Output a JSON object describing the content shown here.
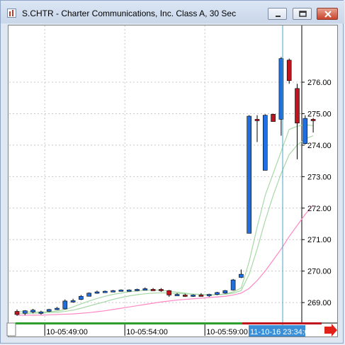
{
  "window": {
    "title": "S.CHTR - Charter Communications, Inc. Class A, 30 Sec",
    "minimize_icon": "minimize-icon",
    "maximize_icon": "maximize-icon",
    "close_icon": "close-icon"
  },
  "chart_data": {
    "type": "candlestick",
    "y_ticks": [
      "276.00",
      "275.00",
      "274.00",
      "273.00",
      "272.00",
      "271.00",
      "270.00",
      "269.00"
    ],
    "y_tick_values": [
      276,
      275,
      274,
      273,
      272,
      271,
      270,
      269
    ],
    "ylim": [
      268.35,
      277.8
    ],
    "x_ticks": [
      "10-05:49:00",
      "10-05:54:00",
      "10-05:59:00"
    ],
    "cursor_time_label": "11-10-16 23:34:00",
    "cursor_price_label": "",
    "colors": {
      "up": "#1f6fe0",
      "down": "#c0141e",
      "ma_fast": "#a8d8a8",
      "ma_slow": "#ff88c4",
      "cursor": "#4aa3c8",
      "scroll_green": "#2e9e2e",
      "scroll_red": "#c0141e"
    },
    "candles": [
      {
        "o": 268.72,
        "h": 268.78,
        "l": 268.58,
        "c": 268.62
      },
      {
        "o": 268.66,
        "h": 268.76,
        "l": 268.6,
        "c": 268.74
      },
      {
        "o": 268.7,
        "h": 268.8,
        "l": 268.66,
        "c": 268.76
      },
      {
        "o": 268.7,
        "h": 268.74,
        "l": 268.62,
        "c": 268.7
      },
      {
        "o": 268.72,
        "h": 268.8,
        "l": 268.7,
        "c": 268.78
      },
      {
        "o": 268.78,
        "h": 268.86,
        "l": 268.76,
        "c": 268.82
      },
      {
        "o": 268.8,
        "h": 269.1,
        "l": 268.78,
        "c": 269.05
      },
      {
        "o": 269.02,
        "h": 269.12,
        "l": 269.0,
        "c": 269.06
      },
      {
        "o": 269.1,
        "h": 269.24,
        "l": 269.08,
        "c": 269.2
      },
      {
        "o": 269.2,
        "h": 269.32,
        "l": 269.2,
        "c": 269.3
      },
      {
        "o": 269.3,
        "h": 269.38,
        "l": 269.28,
        "c": 269.34
      },
      {
        "o": 269.34,
        "h": 269.38,
        "l": 269.32,
        "c": 269.36
      },
      {
        "o": 269.36,
        "h": 269.4,
        "l": 269.34,
        "c": 269.38
      },
      {
        "o": 269.38,
        "h": 269.42,
        "l": 269.36,
        "c": 269.4
      },
      {
        "o": 269.4,
        "h": 269.42,
        "l": 269.38,
        "c": 269.4
      },
      {
        "o": 269.4,
        "h": 269.44,
        "l": 269.36,
        "c": 269.42
      },
      {
        "o": 269.44,
        "h": 269.48,
        "l": 269.4,
        "c": 269.44
      },
      {
        "o": 269.42,
        "h": 269.46,
        "l": 269.38,
        "c": 269.4
      },
      {
        "o": 269.42,
        "h": 269.46,
        "l": 269.34,
        "c": 269.38
      },
      {
        "o": 269.38,
        "h": 269.4,
        "l": 269.18,
        "c": 269.24
      },
      {
        "o": 269.26,
        "h": 269.3,
        "l": 269.22,
        "c": 269.26
      },
      {
        "o": 269.24,
        "h": 269.28,
        "l": 269.18,
        "c": 269.22
      },
      {
        "o": 269.2,
        "h": 269.26,
        "l": 269.18,
        "c": 269.24
      },
      {
        "o": 269.24,
        "h": 269.3,
        "l": 269.2,
        "c": 269.22
      },
      {
        "o": 269.22,
        "h": 269.28,
        "l": 269.18,
        "c": 269.26
      },
      {
        "o": 269.26,
        "h": 269.34,
        "l": 269.24,
        "c": 269.32
      },
      {
        "o": 269.3,
        "h": 269.4,
        "l": 269.28,
        "c": 269.38
      },
      {
        "o": 269.4,
        "h": 269.75,
        "l": 269.38,
        "c": 269.72
      },
      {
        "o": 269.8,
        "h": 270.05,
        "l": 269.78,
        "c": 269.9
      },
      {
        "o": 271.2,
        "h": 274.95,
        "l": 271.2,
        "c": 274.92
      },
      {
        "o": 274.82,
        "h": 274.95,
        "l": 274.1,
        "c": 274.78
      },
      {
        "o": 273.2,
        "h": 274.98,
        "l": 273.2,
        "c": 274.95
      },
      {
        "o": 274.98,
        "h": 275.0,
        "l": 274.75,
        "c": 274.75
      },
      {
        "o": 274.82,
        "h": 276.8,
        "l": 274.3,
        "c": 276.75
      },
      {
        "o": 276.7,
        "h": 276.75,
        "l": 275.95,
        "c": 276.05
      },
      {
        "o": 275.8,
        "h": 275.95,
        "l": 273.55,
        "c": 274.7
      },
      {
        "o": 274.05,
        "h": 274.95,
        "l": 274.02,
        "c": 274.85
      },
      {
        "o": 274.82,
        "h": 274.86,
        "l": 274.4,
        "c": 274.8
      }
    ],
    "ma_fast": [
      268.72,
      268.71,
      268.7,
      268.7,
      268.71,
      268.73,
      268.78,
      268.86,
      268.96,
      269.05,
      269.13,
      269.2,
      269.26,
      269.3,
      269.34,
      269.37,
      269.39,
      269.4,
      269.39,
      269.36,
      269.33,
      269.3,
      269.27,
      269.25,
      269.24,
      269.25,
      269.27,
      269.34,
      269.46,
      270.3,
      271.4,
      272.4,
      273.1,
      273.8,
      274.5,
      274.6,
      274.65,
      274.62
    ],
    "ma_fast2": [
      268.66,
      268.66,
      268.66,
      268.67,
      268.68,
      268.69,
      268.72,
      268.76,
      268.82,
      268.89,
      268.96,
      269.03,
      269.1,
      269.16,
      269.21,
      269.25,
      269.28,
      269.3,
      269.31,
      269.3,
      269.29,
      269.28,
      269.27,
      269.26,
      269.25,
      269.25,
      269.26,
      269.3,
      269.38,
      269.9,
      270.7,
      271.6,
      272.4,
      273.1,
      273.7,
      274.0,
      274.2,
      274.3
    ],
    "ma_slow": [
      268.6,
      268.6,
      268.6,
      268.6,
      268.61,
      268.62,
      268.63,
      268.64,
      268.66,
      268.68,
      268.71,
      268.74,
      268.78,
      268.82,
      268.86,
      268.9,
      268.94,
      268.98,
      269.02,
      269.05,
      269.08,
      269.1,
      269.12,
      269.14,
      269.16,
      269.18,
      269.2,
      269.24,
      269.3,
      269.45,
      269.7,
      270.0,
      270.35,
      270.7,
      271.1,
      271.45,
      271.8,
      272.1
    ]
  }
}
